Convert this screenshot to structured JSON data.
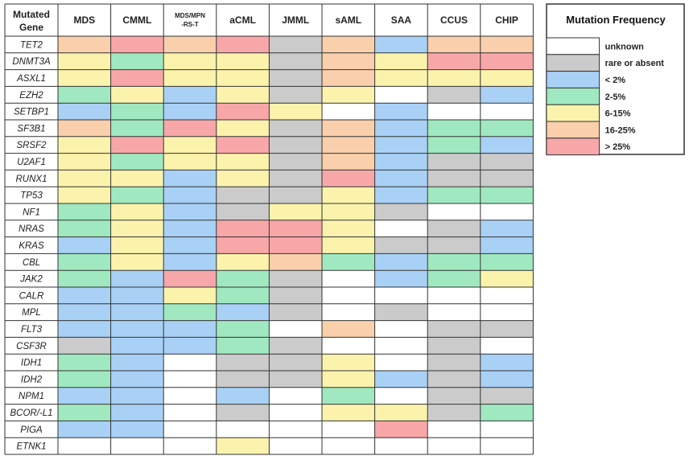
{
  "colors": {
    "unknown": "#ffffff",
    "rare or absent": "#cbcbcb",
    "< 2%": "#a9d1f5",
    "2-5%": "#a0e9c0",
    "6-15%": "#fbf3ac",
    "16-25%": "#f9cfac",
    "> 25%": "#f8a7a8"
  },
  "chart_data": {
    "type": "heatmap",
    "row_header": "Mutated Gene",
    "columns": [
      "MDS",
      "CMML",
      "MDS/MPN\n-RS-T",
      "aCML",
      "JMML",
      "sAML",
      "SAA",
      "CCUS",
      "CHIP"
    ],
    "rows": [
      "TET2",
      "DNMT3A",
      "ASXL1",
      "EZH2",
      "SETBP1",
      "SF3B1",
      "SRSF2",
      "U2AF1",
      "RUNX1",
      "TP53",
      "NF1",
      "NRAS",
      "KRAS",
      "CBL",
      "JAK2",
      "CALR",
      "MPL",
      "FLT3",
      "CSF3R",
      "IDH1",
      "IDH2",
      "NPM1",
      "BCOR/-L1",
      "PIGA",
      "ETNK1"
    ],
    "categories": [
      "unknown",
      "rare or absent",
      "< 2%",
      "2-5%",
      "6-15%",
      "16-25%",
      "> 25%"
    ],
    "values": [
      [
        5,
        6,
        5,
        6,
        1,
        5,
        2,
        5,
        5
      ],
      [
        4,
        3,
        4,
        4,
        1,
        5,
        4,
        6,
        6
      ],
      [
        4,
        6,
        4,
        4,
        1,
        5,
        4,
        4,
        4
      ],
      [
        3,
        4,
        2,
        4,
        1,
        4,
        0,
        1,
        2
      ],
      [
        2,
        3,
        2,
        6,
        4,
        0,
        2,
        0,
        0
      ],
      [
        5,
        3,
        6,
        4,
        1,
        5,
        2,
        3,
        3
      ],
      [
        4,
        6,
        4,
        6,
        1,
        5,
        2,
        3,
        2
      ],
      [
        4,
        3,
        4,
        4,
        1,
        5,
        2,
        1,
        1
      ],
      [
        4,
        4,
        2,
        4,
        1,
        6,
        2,
        1,
        1
      ],
      [
        4,
        3,
        2,
        1,
        1,
        4,
        2,
        3,
        3
      ],
      [
        3,
        4,
        2,
        1,
        4,
        4,
        1,
        0,
        0
      ],
      [
        3,
        4,
        2,
        6,
        6,
        4,
        0,
        1,
        2
      ],
      [
        2,
        4,
        2,
        6,
        6,
        4,
        1,
        1,
        2
      ],
      [
        3,
        4,
        2,
        4,
        5,
        3,
        2,
        3,
        3
      ],
      [
        3,
        2,
        6,
        3,
        1,
        0,
        2,
        3,
        4
      ],
      [
        2,
        2,
        4,
        3,
        1,
        0,
        0,
        0,
        0
      ],
      [
        2,
        2,
        3,
        2,
        1,
        0,
        1,
        0,
        0
      ],
      [
        2,
        2,
        2,
        3,
        0,
        5,
        0,
        1,
        1
      ],
      [
        1,
        2,
        2,
        3,
        1,
        0,
        0,
        1,
        0
      ],
      [
        3,
        2,
        0,
        1,
        1,
        4,
        0,
        1,
        2
      ],
      [
        3,
        2,
        0,
        1,
        1,
        4,
        2,
        1,
        2
      ],
      [
        2,
        2,
        0,
        2,
        0,
        3,
        0,
        1,
        1
      ],
      [
        3,
        2,
        0,
        1,
        0,
        4,
        4,
        1,
        3
      ],
      [
        2,
        2,
        0,
        0,
        0,
        0,
        6,
        0,
        0
      ],
      [
        0,
        0,
        0,
        4,
        0,
        0,
        0,
        0,
        0
      ]
    ],
    "legend": {
      "title": "Mutation Frequency",
      "placement": "right",
      "items": [
        "unknown",
        "rare or absent",
        "< 2%",
        "2-5%",
        "6-15%",
        "16-25%",
        "> 25%"
      ]
    }
  }
}
